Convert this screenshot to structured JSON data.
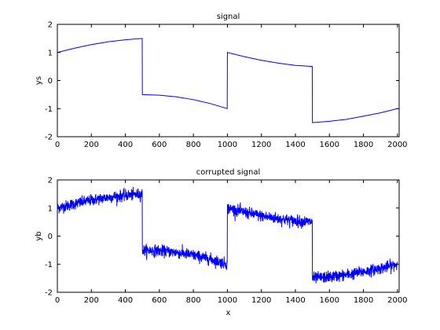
{
  "colors": {
    "series": "#0000ff",
    "axes": "#000000",
    "background": "#ffffff"
  },
  "chart_data": [
    {
      "type": "line",
      "title": "signal",
      "xlabel": "",
      "ylabel": "ys",
      "xlim": [
        0,
        2010
      ],
      "ylim": [
        -2,
        2
      ],
      "xticks": [
        0,
        200,
        400,
        600,
        800,
        1000,
        1200,
        1400,
        1600,
        1800,
        2000
      ],
      "yticks": [
        -2,
        -1,
        0,
        1,
        2
      ],
      "grid": false,
      "series": [
        {
          "x": [
            0,
            100,
            200,
            300,
            400,
            499,
            500,
            600,
            700,
            800,
            900,
            999,
            1000,
            1100,
            1200,
            1300,
            1400,
            1499,
            1500,
            1600,
            1700,
            1800,
            1900,
            2000
          ],
          "y": [
            1.0,
            1.15,
            1.28,
            1.38,
            1.45,
            1.5,
            -0.5,
            -0.52,
            -0.58,
            -0.68,
            -0.82,
            -1.0,
            1.0,
            0.85,
            0.72,
            0.62,
            0.54,
            0.5,
            -1.5,
            -1.45,
            -1.38,
            -1.27,
            -1.15,
            -1.0
          ]
        }
      ]
    },
    {
      "type": "line",
      "title": "corrupted signal",
      "xlabel": "x",
      "ylabel": "yb",
      "xlim": [
        0,
        2010
      ],
      "ylim": [
        -2,
        2
      ],
      "xticks": [
        0,
        200,
        400,
        600,
        800,
        1000,
        1200,
        1400,
        1600,
        1800,
        2000
      ],
      "yticks": [
        -2,
        -1,
        0,
        1,
        2
      ],
      "grid": false,
      "noise_amplitude": 0.1,
      "series": [
        {
          "x": [
            0,
            100,
            200,
            300,
            400,
            499,
            500,
            600,
            700,
            800,
            900,
            999,
            1000,
            1100,
            1200,
            1300,
            1400,
            1499,
            1500,
            1600,
            1700,
            1800,
            1900,
            2000
          ],
          "y": [
            1.0,
            1.15,
            1.28,
            1.38,
            1.45,
            1.5,
            -0.5,
            -0.52,
            -0.58,
            -0.68,
            -0.82,
            -1.0,
            1.0,
            0.85,
            0.72,
            0.62,
            0.54,
            0.5,
            -1.5,
            -1.45,
            -1.38,
            -1.27,
            -1.15,
            -1.0
          ]
        }
      ]
    }
  ]
}
